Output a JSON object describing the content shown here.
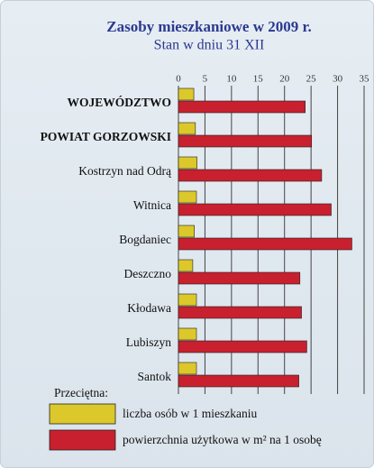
{
  "chart_data": {
    "type": "barh",
    "title": "Zasoby mieszkaniowe w 2009 r.",
    "subtitle": "Stan w dniu 31 XII",
    "legend_title": "Przeciętna:",
    "categories": [
      "WOJEWÓDZTWO",
      "POWIAT GORZOWSKI",
      "Kostrzyn nad Odrą",
      "Witnica",
      "Bogdaniec",
      "Deszczno",
      "Kłodawa",
      "Lubiszyn",
      "Santok"
    ],
    "series": [
      {
        "name": "liczba osób w 1 mieszkaniu",
        "color": "#dcc82a",
        "values": [
          2.9,
          3.2,
          3.5,
          3.4,
          3.0,
          2.7,
          3.4,
          3.4,
          3.4
        ]
      },
      {
        "name": "powierzchnia użytkowa w m² na 1 osobę",
        "color": "#c8202e",
        "values": [
          23.9,
          25.1,
          27.0,
          28.8,
          32.7,
          22.9,
          23.2,
          24.2,
          22.7
        ]
      }
    ],
    "xlim": [
      0,
      35
    ],
    "xticks": [
      0,
      5,
      10,
      15,
      20,
      25,
      30,
      35
    ],
    "grid": true
  }
}
